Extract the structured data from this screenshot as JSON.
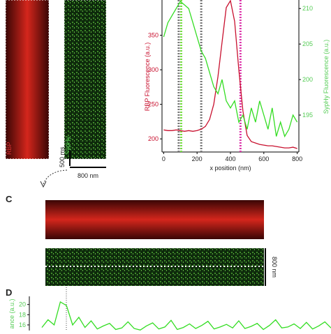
{
  "panel_labels": [
    "C",
    "D"
  ],
  "kymograph": {
    "red_label": "RBP",
    "green_label": "SypHy",
    "time_scale": "500 ms",
    "space_scale": "800 nm",
    "panel_c_scale": "800 nm"
  },
  "chart_data": [
    {
      "type": "line",
      "x_label": "x position (nm)",
      "y_label": "RBP Fluorescence (a.u.)",
      "y2_label": "SypHy Fluorescence (a.u.)",
      "xlim": [
        -10,
        810
      ],
      "xticks": [
        0,
        200,
        400,
        600,
        800
      ],
      "ylim": [
        181,
        401
      ],
      "yticks": [
        200,
        250,
        300,
        350
      ],
      "y2lim": [
        189.8,
        211.2
      ],
      "y2ticks": [
        195,
        200,
        205,
        210
      ],
      "x": [
        0,
        25,
        50,
        75,
        100,
        125,
        150,
        175,
        200,
        225,
        250,
        275,
        300,
        325,
        350,
        375,
        400,
        425,
        450,
        475,
        500,
        525,
        550,
        575,
        600,
        625,
        650,
        675,
        700,
        725,
        750,
        775,
        800
      ],
      "series": [
        {
          "name": "RBP",
          "color": "#c8102e",
          "values": [
            213,
            212,
            212,
            213,
            212,
            211,
            212,
            211,
            212,
            214,
            218,
            228,
            250,
            290,
            340,
            390,
            400,
            370,
            300,
            240,
            205,
            196,
            194,
            192,
            191,
            190,
            190,
            189,
            188,
            187,
            187,
            188,
            186
          ]
        },
        {
          "name": "SypHy",
          "color": "#33dd22",
          "axis": "y2",
          "values": [
            206,
            208,
            209,
            210,
            211,
            210.5,
            210,
            208,
            206,
            204,
            203,
            201,
            199,
            198,
            200,
            197,
            196,
            197,
            194,
            195,
            193,
            196,
            194,
            197,
            195,
            193,
            196,
            192,
            194,
            192,
            193,
            195,
            194
          ]
        }
      ]
    },
    {
      "type": "line",
      "y_label": "ance (a.u.)",
      "ylim": [
        14.9,
        21.6
      ],
      "yticks": [
        16,
        18,
        20
      ],
      "series": [
        {
          "name": "SypHy",
          "color": "#33dd22",
          "values": [
            15.5,
            17,
            16,
            20.5,
            19.8,
            16,
            17.5,
            15.5,
            16.8,
            15.2,
            15.8,
            16.3,
            15.1,
            15.4,
            16.6,
            15.3,
            15,
            15.8,
            16.4,
            15.2,
            15.6,
            16.9,
            15.1,
            15.5,
            16.2,
            15.3,
            15.9,
            16.7,
            15.2,
            15.6,
            16.1,
            15.4,
            16.8,
            15.3,
            15.7,
            16.3,
            15.1,
            15.9,
            17,
            15.4,
            15.6,
            16.2,
            15.3,
            16.5,
            15.2,
            15.8,
            16.6,
            15.4
          ]
        }
      ]
    }
  ]
}
